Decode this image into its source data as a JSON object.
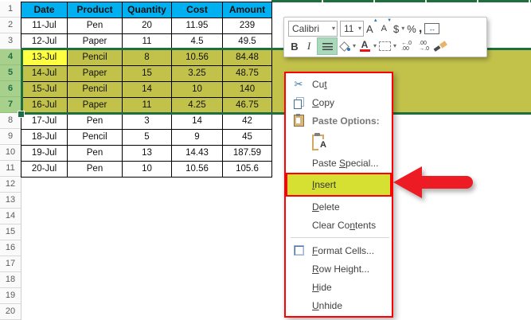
{
  "sheet": {
    "row_numbers": [
      "1",
      "2",
      "3",
      "4",
      "5",
      "6",
      "7",
      "8",
      "9",
      "10",
      "11",
      "12",
      "13",
      "14",
      "15",
      "16",
      "17",
      "18",
      "19",
      "20"
    ],
    "selected_rows": [
      4,
      5,
      6,
      7
    ],
    "columns": [
      "Date",
      "Product",
      "Quantity",
      "Cost",
      "Amount"
    ],
    "rows": [
      {
        "date": "11-Jul",
        "product": "Pen",
        "quantity": "20",
        "cost": "11.95",
        "amount": "239"
      },
      {
        "date": "12-Jul",
        "product": "Paper",
        "quantity": "11",
        "cost": "4.5",
        "amount": "49.5"
      },
      {
        "date": "13-Jul",
        "product": "Pencil",
        "quantity": "8",
        "cost": "10.56",
        "amount": "84.48"
      },
      {
        "date": "14-Jul",
        "product": "Paper",
        "quantity": "15",
        "cost": "3.25",
        "amount": "48.75"
      },
      {
        "date": "15-Jul",
        "product": "Pencil",
        "quantity": "14",
        "cost": "10",
        "amount": "140"
      },
      {
        "date": "16-Jul",
        "product": "Paper",
        "quantity": "11",
        "cost": "4.25",
        "amount": "46.75"
      },
      {
        "date": "17-Jul",
        "product": "Pen",
        "quantity": "3",
        "cost": "14",
        "amount": "42"
      },
      {
        "date": "18-Jul",
        "product": "Pencil",
        "quantity": "5",
        "cost": "9",
        "amount": "45"
      },
      {
        "date": "19-Jul",
        "product": "Pen",
        "quantity": "13",
        "cost": "14.43",
        "amount": "187.59"
      },
      {
        "date": "20-Jul",
        "product": "Pen",
        "quantity": "10",
        "cost": "10.56",
        "amount": "105.6"
      }
    ]
  },
  "mini_toolbar": {
    "font_name": "Calibri",
    "font_size": "11",
    "grow_font": "A",
    "shrink_font": "A",
    "accounting": "$",
    "percent": "%",
    "comma": ",",
    "bold": "B",
    "italic": "I",
    "increase_decimal": "←.0\n.00",
    "decrease_decimal": ".00\n→.0"
  },
  "context_menu": {
    "cut": {
      "pre": "Cu",
      "accel": "t",
      "post": ""
    },
    "copy": {
      "pre": "",
      "accel": "C",
      "post": "opy"
    },
    "paste_options_label": "Paste Options:",
    "paste_button_letter": "A",
    "paste_special": {
      "pre": "Paste ",
      "accel": "S",
      "post": "pecial..."
    },
    "insert": {
      "pre": "",
      "accel": "I",
      "post": "nsert"
    },
    "delete": {
      "pre": "",
      "accel": "D",
      "post": "elete"
    },
    "clear_contents": {
      "pre": "Clear Co",
      "accel": "n",
      "post": "tents"
    },
    "format_cells": {
      "pre": "",
      "accel": "F",
      "post": "ormat Cells..."
    },
    "row_height": {
      "pre": "",
      "accel": "R",
      "post": "ow Height..."
    },
    "hide": {
      "pre": "",
      "accel": "H",
      "post": "ide"
    },
    "unhide": {
      "pre": "",
      "accel": "U",
      "post": "nhide"
    }
  },
  "colors": {
    "header_fill": "#00b0f0",
    "selection_fill": "#c2c24b",
    "active_cell_fill": "#ffff42",
    "row_header_selected_fill": "#a8d08d",
    "selection_border": "#1d6f42",
    "insert_highlight": "#d6e033",
    "annotation_red": "#ff0000",
    "arrow_red": "#ed1c24",
    "header_strip_green": "#1d6f42",
    "align_highlight": "#a9d9ba"
  }
}
